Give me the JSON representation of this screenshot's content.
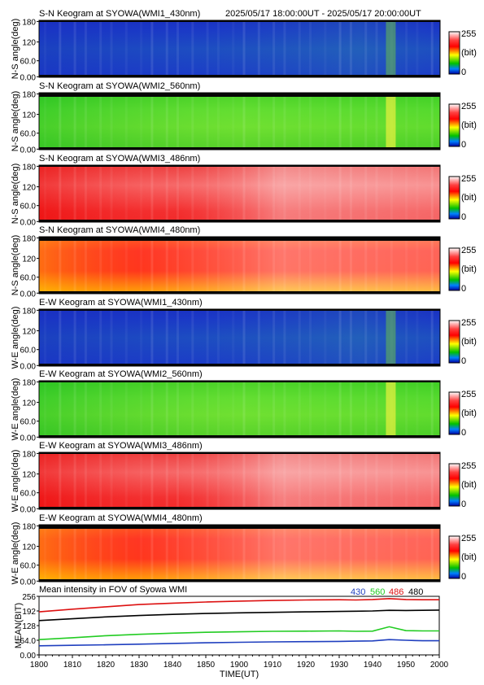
{
  "header": {
    "time_range": "2025/05/17 18:00:00UT - 2025/05/17 20:00:00UT"
  },
  "colorbar": {
    "max_label": "255",
    "unit_label": "(bit)",
    "min_label": "0"
  },
  "y_ticks": [
    "180",
    "120",
    "60.0",
    "0.00"
  ],
  "keograms": [
    {
      "title": "S-N Keogram at SYOWA(WMI1_430nm)",
      "ylabel": "N-S angle(deg)",
      "palette": "blue",
      "edge_top": false,
      "feature": 0.9,
      "ew": false
    },
    {
      "title": "S-N Keogram at SYOWA(WMI2_560nm)",
      "ylabel": "N-S angle(deg)",
      "palette": "green",
      "edge_top": true,
      "feature": 0.9,
      "ew": false
    },
    {
      "title": "S-N Keogram at SYOWA(WMI3_486nm)",
      "ylabel": "N-S angle(deg)",
      "palette": "red486",
      "edge_top": false,
      "feature": 0.2,
      "ew": false
    },
    {
      "title": "S-N Keogram at SYOWA(WMI4_480nm)",
      "ylabel": "N-S angle(deg)",
      "palette": "red480",
      "edge_top": true,
      "feature": 0.2,
      "ew": false
    },
    {
      "title": "E-W Keogram at SYOWA(WMI1_430nm)",
      "ylabel": "W-E angle(deg)",
      "palette": "blue",
      "edge_top": false,
      "feature": 0.9,
      "ew": true
    },
    {
      "title": "E-W Keogram at SYOWA(WMI2_560nm)",
      "ylabel": "W-E angle(deg)",
      "palette": "green",
      "edge_top": false,
      "feature": 0.9,
      "ew": true
    },
    {
      "title": "E-W Keogram at SYOWA(WMI3_486nm)",
      "ylabel": "W-E angle(deg)",
      "palette": "red486",
      "edge_top": false,
      "feature": 0.2,
      "ew": true
    },
    {
      "title": "E-W Keogram at SYOWA(WMI4_480nm)",
      "ylabel": "W-E angle(deg)",
      "palette": "red480",
      "edge_top": true,
      "feature": 0.2,
      "ew": true
    }
  ],
  "chart_data": {
    "type": "line",
    "title": "Mean intensity in FOV of Syowa WMI",
    "xlabel": "TIME(UT)",
    "ylabel": "MEAN(BIT)",
    "x_ticks": [
      "1800",
      "1810",
      "1820",
      "1830",
      "1840",
      "1850",
      "1900",
      "1910",
      "1920",
      "1930",
      "1940",
      "1950",
      "2000"
    ],
    "y_ticks": [
      0,
      64,
      128,
      192,
      256
    ],
    "y_tick_labels": [
      "0.00",
      "64.0",
      "128",
      "192",
      "256"
    ],
    "ylim": [
      0,
      256
    ],
    "x_minutes": [
      0,
      10,
      20,
      30,
      40,
      50,
      60,
      70,
      80,
      90,
      95,
      100,
      105,
      110,
      115,
      120
    ],
    "series": [
      {
        "name": "430",
        "color": "#1f3fbf",
        "values": [
          40,
          42,
          44,
          47,
          50,
          53,
          55,
          57,
          58,
          59,
          60,
          61,
          67,
          64,
          62,
          62
        ]
      },
      {
        "name": "560",
        "color": "#22cc22",
        "values": [
          67,
          75,
          84,
          90,
          95,
          99,
          101,
          103,
          104,
          105,
          103,
          104,
          123,
          106,
          105,
          105
        ]
      },
      {
        "name": "486",
        "color": "#dd1111",
        "values": [
          188,
          200,
          210,
          220,
          226,
          231,
          235,
          238,
          240,
          241,
          240,
          242,
          246,
          242,
          241,
          241
        ]
      },
      {
        "name": "480",
        "color": "#000000",
        "values": [
          150,
          158,
          166,
          172,
          177,
          181,
          184,
          186,
          188,
          190,
          191,
          192,
          195,
          194,
          195,
          196
        ]
      }
    ],
    "legend_placement": "top-right"
  }
}
